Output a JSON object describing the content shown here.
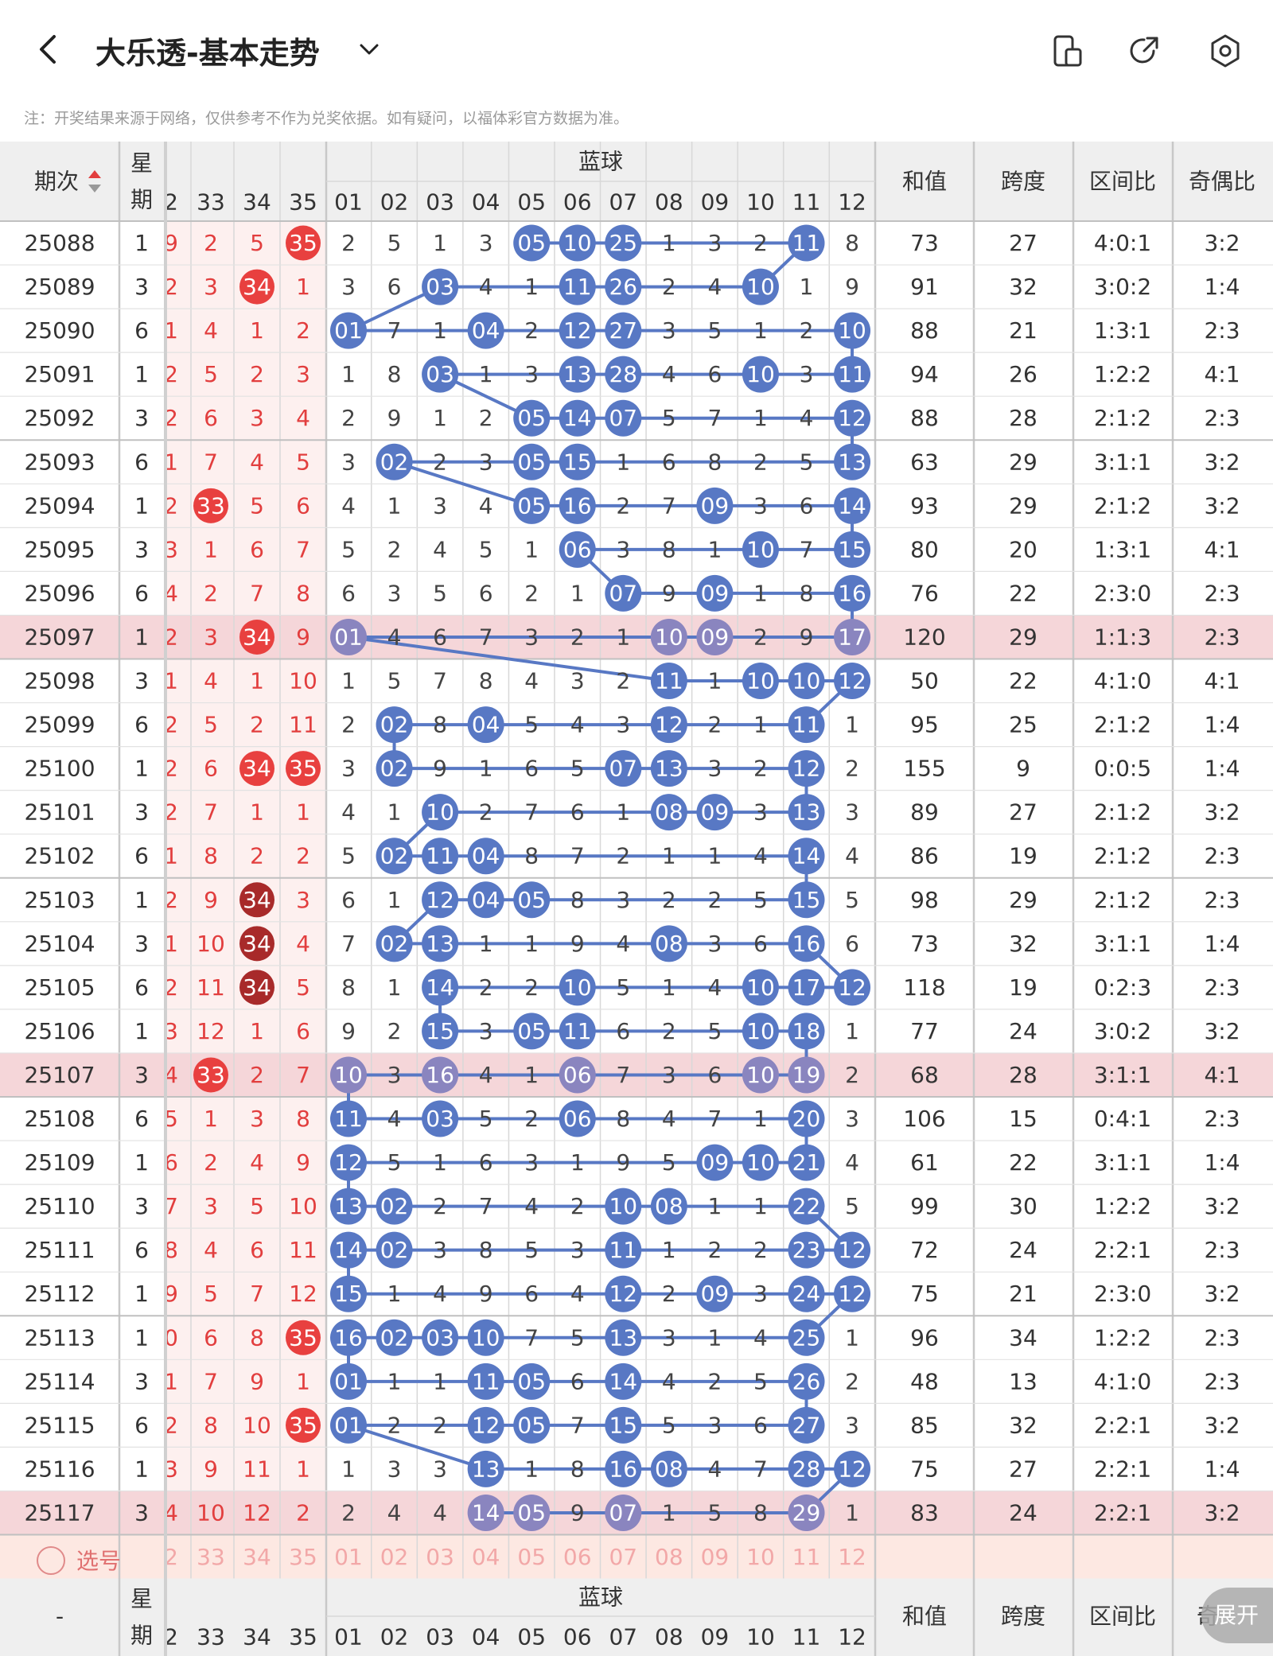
{
  "header": {
    "title": "大乐透-基本走势",
    "icons": [
      "back-icon",
      "chevron-down-icon",
      "device-switch-icon",
      "share-icon",
      "settings-icon"
    ]
  },
  "note": "注：开奖结果来源于网络，仅供参考不作为兑奖依据。如有疑问，以福体彩官方数据为准。",
  "columns": {
    "issue": "期次",
    "week": "星期",
    "blue_group": "蓝球",
    "front_visible": [
      "2",
      "33",
      "34",
      "35"
    ],
    "blue": [
      "01",
      "02",
      "03",
      "04",
      "05",
      "06",
      "07",
      "08",
      "09",
      "10",
      "11",
      "12"
    ],
    "sum": "和值",
    "span": "跨度",
    "zone": "区间比",
    "odd": "奇偶比",
    "bottom_dash": "-",
    "bottom_odd_partial": "奇"
  },
  "rows": [
    {
      "issue": "25088",
      "week": "1",
      "front": [
        "9",
        "2",
        "5",
        "35"
      ],
      "blue": [
        "2",
        "5",
        "1",
        "3",
        "05",
        "10",
        "25",
        "1",
        "3",
        "2",
        "11",
        "8"
      ],
      "sum": "73",
      "span": "27",
      "zone": "4:0:1",
      "odd": "3:2"
    },
    {
      "issue": "25089",
      "week": "3",
      "front": [
        "2",
        "3",
        "34",
        "1"
      ],
      "blue": [
        "3",
        "6",
        "03",
        "4",
        "1",
        "11",
        "26",
        "2",
        "4",
        "10",
        "1",
        "9"
      ],
      "sum": "91",
      "span": "32",
      "zone": "3:0:2",
      "odd": "1:4"
    },
    {
      "issue": "25090",
      "week": "6",
      "front": [
        "1",
        "4",
        "1",
        "2"
      ],
      "blue": [
        "01",
        "7",
        "1",
        "04",
        "2",
        "12",
        "27",
        "3",
        "5",
        "1",
        "2",
        "10"
      ],
      "sum": "88",
      "span": "21",
      "zone": "1:3:1",
      "odd": "2:3"
    },
    {
      "issue": "25091",
      "week": "1",
      "front": [
        "2",
        "5",
        "2",
        "3"
      ],
      "blue": [
        "1",
        "8",
        "03",
        "1",
        "3",
        "13",
        "28",
        "4",
        "6",
        "10",
        "3",
        "11"
      ],
      "sum": "94",
      "span": "26",
      "zone": "1:2:2",
      "odd": "4:1"
    },
    {
      "issue": "25092",
      "week": "3",
      "front": [
        "2",
        "6",
        "3",
        "4"
      ],
      "blue": [
        "2",
        "9",
        "1",
        "2",
        "05",
        "14",
        "07",
        "5",
        "7",
        "1",
        "4",
        "12"
      ],
      "sum": "88",
      "span": "28",
      "zone": "2:1:2",
      "odd": "2:3"
    },
    {
      "issue": "25093",
      "week": "6",
      "front": [
        "1",
        "7",
        "4",
        "5"
      ],
      "blue": [
        "3",
        "02",
        "2",
        "3",
        "05",
        "15",
        "1",
        "6",
        "8",
        "2",
        "5",
        "13"
      ],
      "sum": "63",
      "span": "29",
      "zone": "3:1:1",
      "odd": "3:2"
    },
    {
      "issue": "25094",
      "week": "1",
      "front": [
        "2",
        "33",
        "5",
        "6"
      ],
      "blue": [
        "4",
        "1",
        "3",
        "4",
        "05",
        "16",
        "2",
        "7",
        "09",
        "3",
        "6",
        "14"
      ],
      "sum": "93",
      "span": "29",
      "zone": "2:1:2",
      "odd": "3:2"
    },
    {
      "issue": "25095",
      "week": "3",
      "front": [
        "3",
        "1",
        "6",
        "7"
      ],
      "blue": [
        "5",
        "2",
        "4",
        "5",
        "1",
        "06",
        "3",
        "8",
        "1",
        "10",
        "7",
        "15"
      ],
      "sum": "80",
      "span": "20",
      "zone": "1:3:1",
      "odd": "4:1"
    },
    {
      "issue": "25096",
      "week": "6",
      "front": [
        "4",
        "2",
        "7",
        "8"
      ],
      "blue": [
        "6",
        "3",
        "5",
        "6",
        "2",
        "1",
        "07",
        "9",
        "09",
        "1",
        "8",
        "16"
      ],
      "sum": "76",
      "span": "22",
      "zone": "2:3:0",
      "odd": "2:3"
    },
    {
      "issue": "25097",
      "week": "1",
      "front": [
        "2",
        "3",
        "34",
        "9"
      ],
      "blue": [
        "01",
        "4",
        "6",
        "7",
        "3",
        "2",
        "1",
        "10",
        "09",
        "2",
        "9",
        "17"
      ],
      "sum": "120",
      "span": "29",
      "zone": "1:1:3",
      "odd": "2:3"
    },
    {
      "issue": "25098",
      "week": "3",
      "front": [
        "1",
        "4",
        "1",
        "10"
      ],
      "blue": [
        "1",
        "5",
        "7",
        "8",
        "4",
        "3",
        "2",
        "11",
        "1",
        "10",
        "10",
        "12"
      ],
      "sum": "50",
      "span": "22",
      "zone": "4:1:0",
      "odd": "4:1"
    },
    {
      "issue": "25099",
      "week": "6",
      "front": [
        "2",
        "5",
        "2",
        "11"
      ],
      "blue": [
        "2",
        "02",
        "8",
        "04",
        "5",
        "4",
        "3",
        "12",
        "2",
        "1",
        "11",
        "1"
      ],
      "sum": "95",
      "span": "25",
      "zone": "2:1:2",
      "odd": "1:4"
    },
    {
      "issue": "25100",
      "week": "1",
      "front": [
        "2",
        "6",
        "34",
        "35"
      ],
      "blue": [
        "3",
        "02",
        "9",
        "1",
        "6",
        "5",
        "07",
        "13",
        "3",
        "2",
        "12",
        "2"
      ],
      "sum": "155",
      "span": "9",
      "zone": "0:0:5",
      "odd": "1:4"
    },
    {
      "issue": "25101",
      "week": "3",
      "front": [
        "2",
        "7",
        "1",
        "1"
      ],
      "blue": [
        "4",
        "1",
        "10",
        "2",
        "7",
        "6",
        "1",
        "08",
        "09",
        "3",
        "13",
        "3"
      ],
      "sum": "89",
      "span": "27",
      "zone": "2:1:2",
      "odd": "3:2"
    },
    {
      "issue": "25102",
      "week": "6",
      "front": [
        "1",
        "8",
        "2",
        "2"
      ],
      "blue": [
        "5",
        "02",
        "11",
        "04",
        "8",
        "7",
        "2",
        "1",
        "1",
        "4",
        "14",
        "4"
      ],
      "sum": "86",
      "span": "19",
      "zone": "2:1:2",
      "odd": "2:3"
    },
    {
      "issue": "25103",
      "week": "1",
      "front": [
        "2",
        "9",
        "34",
        "3"
      ],
      "blue": [
        "6",
        "1",
        "12",
        "04",
        "05",
        "8",
        "3",
        "2",
        "2",
        "5",
        "15",
        "5"
      ],
      "sum": "98",
      "span": "29",
      "zone": "2:1:2",
      "odd": "2:3"
    },
    {
      "issue": "25104",
      "week": "3",
      "front": [
        "1",
        "10",
        "34",
        "4"
      ],
      "blue": [
        "7",
        "02",
        "13",
        "1",
        "1",
        "9",
        "4",
        "08",
        "3",
        "6",
        "16",
        "6"
      ],
      "sum": "73",
      "span": "32",
      "zone": "3:1:1",
      "odd": "1:4"
    },
    {
      "issue": "25105",
      "week": "6",
      "front": [
        "2",
        "11",
        "34",
        "5"
      ],
      "blue": [
        "8",
        "1",
        "14",
        "2",
        "2",
        "10",
        "5",
        "1",
        "4",
        "10",
        "17",
        "12"
      ],
      "sum": "118",
      "span": "19",
      "zone": "0:2:3",
      "odd": "2:3"
    },
    {
      "issue": "25106",
      "week": "1",
      "front": [
        "3",
        "12",
        "1",
        "6"
      ],
      "blue": [
        "9",
        "2",
        "15",
        "3",
        "05",
        "11",
        "6",
        "2",
        "5",
        "10",
        "18",
        "1"
      ],
      "sum": "77",
      "span": "24",
      "zone": "3:0:2",
      "odd": "3:2"
    },
    {
      "issue": "25107",
      "week": "3",
      "front": [
        "4",
        "33",
        "2",
        "7"
      ],
      "blue": [
        "10",
        "3",
        "16",
        "4",
        "1",
        "06",
        "7",
        "3",
        "6",
        "10",
        "19",
        "2"
      ],
      "sum": "68",
      "span": "28",
      "zone": "3:1:1",
      "odd": "4:1"
    },
    {
      "issue": "25108",
      "week": "6",
      "front": [
        "5",
        "1",
        "3",
        "8"
      ],
      "blue": [
        "11",
        "4",
        "03",
        "5",
        "2",
        "06",
        "8",
        "4",
        "7",
        "1",
        "20",
        "3"
      ],
      "sum": "106",
      "span": "15",
      "zone": "0:4:1",
      "odd": "2:3"
    },
    {
      "issue": "25109",
      "week": "1",
      "front": [
        "6",
        "2",
        "4",
        "9"
      ],
      "blue": [
        "12",
        "5",
        "1",
        "6",
        "3",
        "1",
        "9",
        "5",
        "09",
        "10",
        "21",
        "4"
      ],
      "sum": "61",
      "span": "22",
      "zone": "3:1:1",
      "odd": "1:4"
    },
    {
      "issue": "25110",
      "week": "3",
      "front": [
        "7",
        "3",
        "5",
        "10"
      ],
      "blue": [
        "13",
        "02",
        "2",
        "7",
        "4",
        "2",
        "10",
        "08",
        "1",
        "1",
        "22",
        "5"
      ],
      "sum": "99",
      "span": "30",
      "zone": "1:2:2",
      "odd": "3:2"
    },
    {
      "issue": "25111",
      "week": "6",
      "front": [
        "8",
        "4",
        "6",
        "11"
      ],
      "blue": [
        "14",
        "02",
        "3",
        "8",
        "5",
        "3",
        "11",
        "1",
        "2",
        "2",
        "23",
        "12"
      ],
      "sum": "72",
      "span": "24",
      "zone": "2:2:1",
      "odd": "2:3"
    },
    {
      "issue": "25112",
      "week": "1",
      "front": [
        "9",
        "5",
        "7",
        "12"
      ],
      "blue": [
        "15",
        "1",
        "4",
        "9",
        "6",
        "4",
        "12",
        "2",
        "09",
        "3",
        "24",
        "12"
      ],
      "sum": "75",
      "span": "21",
      "zone": "2:3:0",
      "odd": "3:2"
    },
    {
      "issue": "25113",
      "week": "1",
      "front": [
        "0",
        "6",
        "8",
        "35"
      ],
      "blue": [
        "16",
        "02",
        "03",
        "10",
        "7",
        "5",
        "13",
        "3",
        "1",
        "4",
        "25",
        "1"
      ],
      "sum": "96",
      "span": "34",
      "zone": "1:2:2",
      "odd": "2:3"
    },
    {
      "issue": "25114",
      "week": "3",
      "front": [
        "1",
        "7",
        "9",
        "1"
      ],
      "blue": [
        "01",
        "1",
        "1",
        "11",
        "05",
        "6",
        "14",
        "4",
        "2",
        "5",
        "26",
        "2"
      ],
      "sum": "48",
      "span": "13",
      "zone": "4:1:0",
      "odd": "2:3"
    },
    {
      "issue": "25115",
      "week": "6",
      "front": [
        "2",
        "8",
        "10",
        "35"
      ],
      "blue": [
        "01",
        "2",
        "2",
        "12",
        "05",
        "7",
        "15",
        "5",
        "3",
        "6",
        "27",
        "3"
      ],
      "sum": "85",
      "span": "32",
      "zone": "2:2:1",
      "odd": "3:2"
    },
    {
      "issue": "25116",
      "week": "1",
      "front": [
        "3",
        "9",
        "11",
        "1"
      ],
      "blue": [
        "1",
        "3",
        "3",
        "13",
        "1",
        "8",
        "16",
        "08",
        "4",
        "7",
        "28",
        "12"
      ],
      "sum": "75",
      "span": "27",
      "zone": "2:2:1",
      "odd": "1:4"
    },
    {
      "issue": "25117",
      "week": "3",
      "front": [
        "4",
        "10",
        "12",
        "2"
      ],
      "blue": [
        "2",
        "4",
        "4",
        "14",
        "05",
        "9",
        "07",
        "1",
        "5",
        "8",
        "29",
        "1"
      ],
      "sum": "83",
      "span": "24",
      "zone": "2:2:1",
      "odd": "3:2"
    }
  ],
  "highlight_rows": [
    "25097",
    "25107",
    "25117"
  ],
  "select_row": {
    "label": "选号"
  },
  "expand_button": "展开",
  "colors": {
    "blue_ball": "#5878c4",
    "blue_ball_dim": "#8a85bf",
    "red_ball": "#e8403f",
    "dark_red_ball": "#a82a2a",
    "red_text": "#e23e3e",
    "highlight_row": "#f5d6d9",
    "front_bg": "#fdf0ef",
    "header_bg": "#efefef",
    "select_bg": "#fde8e2"
  }
}
